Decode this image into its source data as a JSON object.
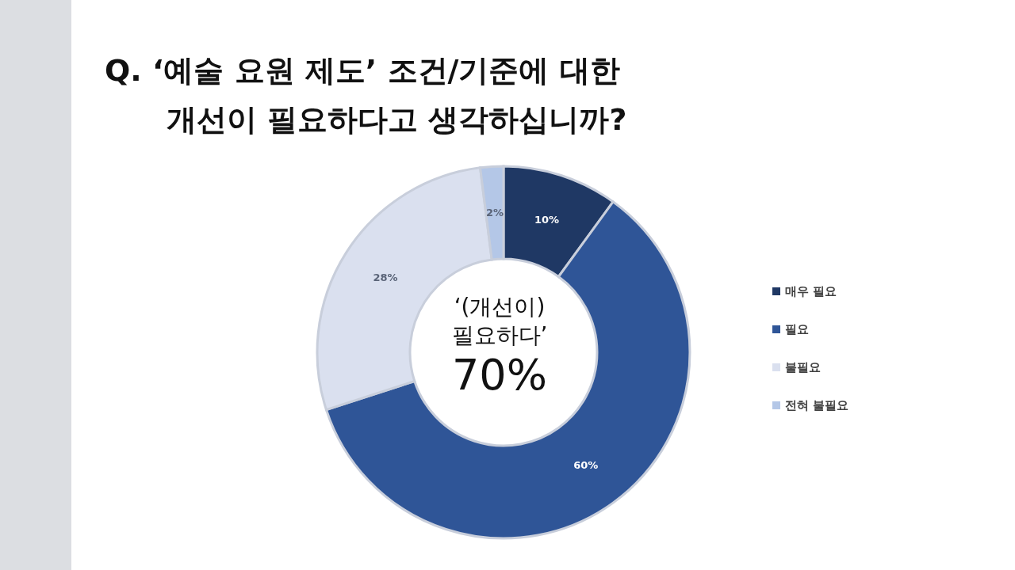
{
  "chart_data": {
    "type": "donut",
    "title": "Q. ‘예술 요원 제도’ 조건/기준에 대한\n개선이 필요하다고 생각하십니까?",
    "categories": [
      "매우 필요",
      "필요",
      "불필요",
      "전혀 불필요"
    ],
    "values": [
      10,
      60,
      28,
      2
    ],
    "colors": [
      "#1f3864",
      "#2f5597",
      "#dae0ef",
      "#b4c7e7"
    ],
    "value_labels": [
      "10%",
      "60%",
      "28%",
      "2%"
    ],
    "annotations": [
      "‘(개선이)\n필요하다’",
      "70%"
    ],
    "legend": "right"
  }
}
